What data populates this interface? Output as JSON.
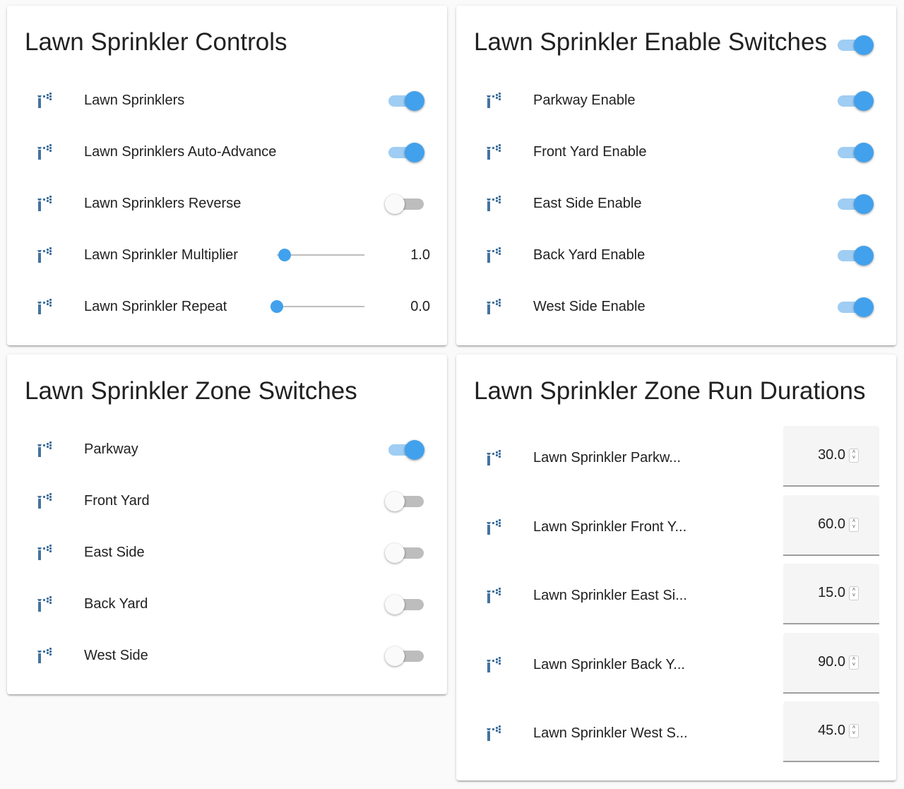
{
  "colors": {
    "accent": "#42a1ec",
    "icon": "#44739e"
  },
  "controls": {
    "title": "Lawn Sprinkler Controls",
    "rows": [
      {
        "label": "Lawn Sprinklers",
        "type": "toggle",
        "on": true
      },
      {
        "label": "Lawn Sprinklers Auto-Advance",
        "type": "toggle",
        "on": true
      },
      {
        "label": "Lawn Sprinklers Reverse",
        "type": "toggle",
        "on": false
      },
      {
        "label": "Lawn Sprinkler Multiplier",
        "type": "slider",
        "value": "1.0"
      },
      {
        "label": "Lawn Sprinkler Repeat",
        "type": "slider",
        "value": "0.0"
      }
    ]
  },
  "enable": {
    "title": "Lawn Sprinkler Enable Switches",
    "header_toggle_on": true,
    "rows": [
      {
        "label": "Parkway Enable",
        "on": true
      },
      {
        "label": "Front Yard Enable",
        "on": true
      },
      {
        "label": "East Side Enable",
        "on": true
      },
      {
        "label": "Back Yard Enable",
        "on": true
      },
      {
        "label": "West Side Enable",
        "on": true
      }
    ]
  },
  "zones": {
    "title": "Lawn Sprinkler Zone Switches",
    "rows": [
      {
        "label": "Parkway",
        "on": true
      },
      {
        "label": "Front Yard",
        "on": false
      },
      {
        "label": "East Side",
        "on": false
      },
      {
        "label": "Back Yard",
        "on": false
      },
      {
        "label": "West Side",
        "on": false
      }
    ]
  },
  "durations": {
    "title": "Lawn Sprinkler Zone Run Durations",
    "rows": [
      {
        "label": "Lawn Sprinkler Parkw...",
        "value": "30.0"
      },
      {
        "label": "Lawn Sprinkler Front Y...",
        "value": "60.0"
      },
      {
        "label": "Lawn Sprinkler East Si...",
        "value": "15.0"
      },
      {
        "label": "Lawn Sprinkler Back Y...",
        "value": "90.0"
      },
      {
        "label": "Lawn Sprinkler West S...",
        "value": "45.0"
      }
    ]
  }
}
